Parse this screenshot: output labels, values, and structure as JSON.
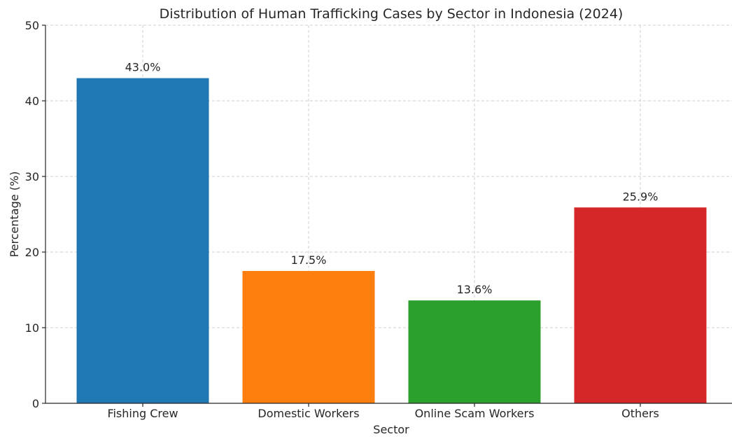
{
  "chart_data": {
    "type": "bar",
    "title": "Distribution of Human Trafficking Cases by Sector in Indonesia (2024)",
    "xlabel": "Sector",
    "ylabel": "Percentage (%)",
    "categories": [
      "Fishing Crew",
      "Domestic Workers",
      "Online Scam Workers",
      "Others"
    ],
    "values": [
      43.0,
      17.5,
      13.6,
      25.9
    ],
    "value_labels": [
      "43.0%",
      "17.5%",
      "13.6%",
      "25.9%"
    ],
    "colors": [
      "#1f77b4",
      "#ff7f0e",
      "#2ca02c",
      "#d62728"
    ],
    "ylim": [
      0,
      50
    ],
    "yticks": [
      0,
      10,
      20,
      30,
      40,
      50
    ],
    "grid": true,
    "legend": "none"
  }
}
